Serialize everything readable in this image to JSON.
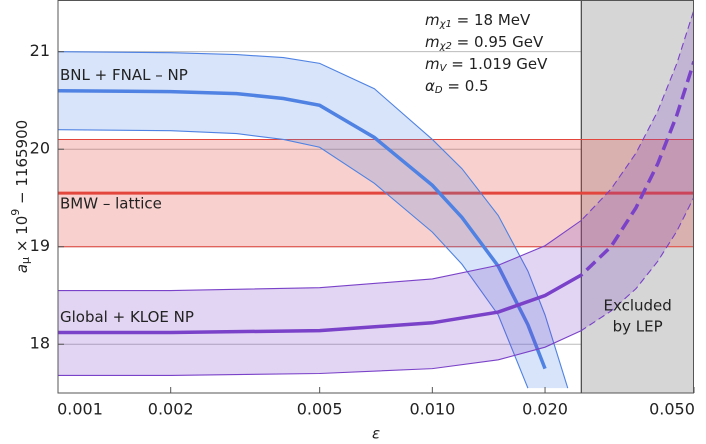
{
  "chart_data": {
    "type": "band-line",
    "xscale": "log",
    "xlabel": "ε",
    "ylabel": {
      "symbol": "a",
      "sub": "μ",
      "times": " × 10",
      "sup": "9",
      "rest": " − 1165900"
    },
    "xlim": [
      0.001,
      0.05
    ],
    "xticks": [
      0.001,
      0.002,
      0.005,
      {
        "value": 0.01,
        "label": "0.010"
      },
      {
        "value": 0.02,
        "label": "0.020"
      },
      {
        "value": 0.05,
        "label": "0.050"
      }
    ],
    "ylim": [
      17.5,
      21.53
    ],
    "yticks": [
      18,
      19,
      20,
      21
    ],
    "grid": true,
    "parameters": [
      {
        "symbol": "m",
        "sub": "χ1",
        "text": " = 18 MeV"
      },
      {
        "symbol": "m",
        "sub": "χ2",
        "text": " = 0.95 GeV"
      },
      {
        "symbol": "m",
        "sub": "V",
        "text": " = 1.019 GeV"
      },
      {
        "symbol": "α",
        "sub": "D",
        "text": " = 0.5"
      }
    ],
    "excluded": {
      "lines": [
        "Excluded",
        "by LEP"
      ],
      "x": [
        0.025,
        0.05
      ],
      "color": "#d6d6d6"
    },
    "bands": [
      {
        "name": "BMW – lattice",
        "color": "#e2463c",
        "value": 19.55,
        "lower": 19.0,
        "upper": 20.1
      }
    ],
    "series": [
      {
        "name": "BNL + FNAL – NP",
        "color": "#4f82e3",
        "dashed_beyond_exclusion": false,
        "x": [
          0.001,
          0.002,
          0.003,
          0.004,
          0.005,
          0.007,
          0.01,
          0.012,
          0.015,
          0.018,
          0.02,
          0.023
        ],
        "values": [
          20.6,
          20.59,
          20.57,
          20.52,
          20.45,
          20.12,
          19.63,
          19.3,
          18.8,
          18.2,
          17.75,
          null
        ],
        "upper": [
          21.0,
          20.99,
          20.97,
          20.94,
          20.88,
          20.62,
          20.1,
          19.8,
          19.32,
          18.75,
          18.3,
          17.55
        ],
        "lower": [
          20.2,
          20.19,
          20.16,
          20.1,
          20.02,
          19.65,
          19.15,
          18.82,
          18.3,
          17.55,
          null,
          null
        ]
      },
      {
        "name": "Global + KLOE NP",
        "color": "#7a42c8",
        "dashed_beyond_exclusion": true,
        "x": [
          0.001,
          0.002,
          0.005,
          0.01,
          0.015,
          0.02,
          0.025,
          0.03,
          0.035,
          0.04,
          0.045,
          0.05
        ],
        "values": [
          18.12,
          18.12,
          18.14,
          18.22,
          18.33,
          18.5,
          18.71,
          19.0,
          19.4,
          19.85,
          20.35,
          20.9
        ],
        "upper": [
          18.55,
          18.55,
          18.58,
          18.67,
          18.81,
          19.01,
          19.27,
          19.59,
          19.96,
          20.39,
          20.88,
          21.43
        ],
        "lower": [
          17.68,
          17.68,
          17.7,
          17.75,
          17.84,
          17.97,
          18.14,
          18.34,
          18.57,
          18.85,
          19.16,
          19.51
        ]
      }
    ]
  }
}
